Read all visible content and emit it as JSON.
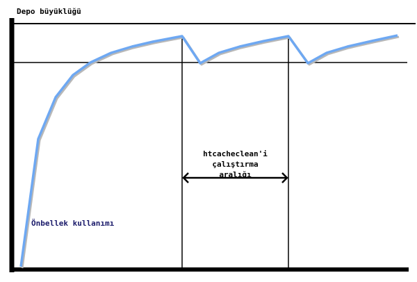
{
  "y_axis_label": "Depo büyüklüğü",
  "curve_label": "Önbellek kullanımı",
  "interval_label": [
    "htcacheclean'i",
    "çalıştırma",
    "aralığı"
  ],
  "colors": {
    "curve": "#6ea8f2",
    "curve_shadow": "#b0b0b0",
    "axes": "#000000",
    "curve_label": "#1a1a6a"
  }
}
